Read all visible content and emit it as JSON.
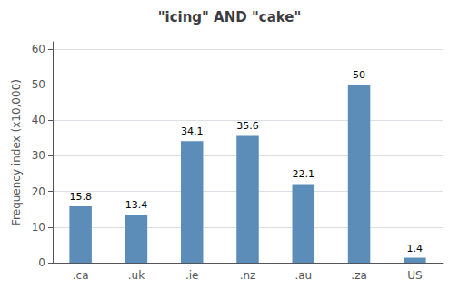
{
  "chart_data": {
    "type": "bar",
    "title": "\"icing\" AND \"cake\"",
    "categories": [
      ".ca",
      ".uk",
      ".ie",
      ".nz",
      ".au",
      ".za",
      "US"
    ],
    "values": [
      15.8,
      13.4,
      34.1,
      35.6,
      22.1,
      50,
      1.4
    ],
    "color": "#5b8db8",
    "ylabel": "Frequency index (x10,000)",
    "ylim": [
      0,
      62
    ],
    "yticks": [
      0,
      10,
      20,
      30,
      40,
      50,
      60
    ],
    "grid": true,
    "data_labels": true
  }
}
